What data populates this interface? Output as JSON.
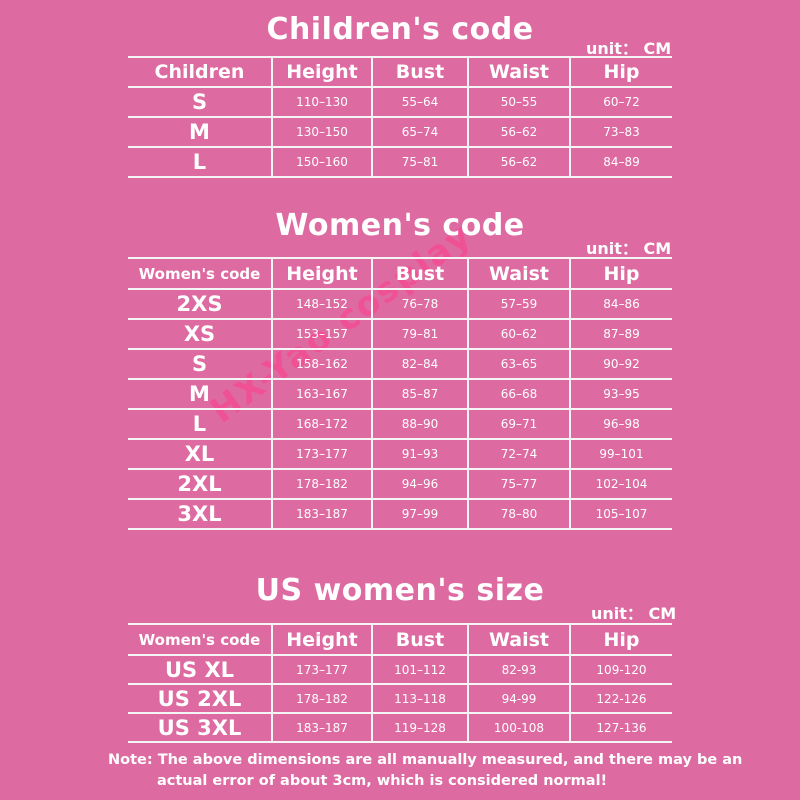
{
  "watermark": "HX-Yao cosplay",
  "children": {
    "title": "Children's code",
    "unit": "unit： CM",
    "headers": [
      "Children",
      "Height",
      "Bust",
      "Waist",
      "Hip"
    ],
    "rows": [
      [
        "S",
        "110–130",
        "55–64",
        "50–55",
        "60–72"
      ],
      [
        "M",
        "130–150",
        "65–74",
        "56–62",
        "73–83"
      ],
      [
        "L",
        "150–160",
        "75–81",
        "56–62",
        "84–89"
      ]
    ]
  },
  "women": {
    "title": "Women's code",
    "unit": "unit： CM",
    "headers": [
      "Women's code",
      "Height",
      "Bust",
      "Waist",
      "Hip"
    ],
    "rows": [
      [
        "2XS",
        "148–152",
        "76–78",
        "57–59",
        "84–86"
      ],
      [
        "XS",
        "153–157",
        "79–81",
        "60–62",
        "87–89"
      ],
      [
        "S",
        "158–162",
        "82–84",
        "63–65",
        "90–92"
      ],
      [
        "M",
        "163–167",
        "85–87",
        "66–68",
        "93–95"
      ],
      [
        "L",
        "168–172",
        "88–90",
        "69–71",
        "96–98"
      ],
      [
        "XL",
        "173–177",
        "91–93",
        "72–74",
        "99–101"
      ],
      [
        "2XL",
        "178–182",
        "94–96",
        "75–77",
        "102–104"
      ],
      [
        "3XL",
        "183–187",
        "97–99",
        "78–80",
        "105–107"
      ]
    ]
  },
  "us_women": {
    "title": "US women's size",
    "unit": "unit： CM",
    "headers": [
      "Women's code",
      "Height",
      "Bust",
      "Waist",
      "Hip"
    ],
    "rows": [
      [
        "US XL",
        "173–177",
        "101–112",
        "82-93",
        "109-120"
      ],
      [
        "US 2XL",
        "178–182",
        "113–118",
        "94-99",
        "122-126"
      ],
      [
        "US 3XL",
        "183–187",
        "119–128",
        "100-108",
        "127-136"
      ]
    ]
  },
  "note": {
    "line1": "Note: The above dimensions are all manually measured, and there may be an",
    "line2": "actual error of about 3cm, which is considered normal!"
  }
}
